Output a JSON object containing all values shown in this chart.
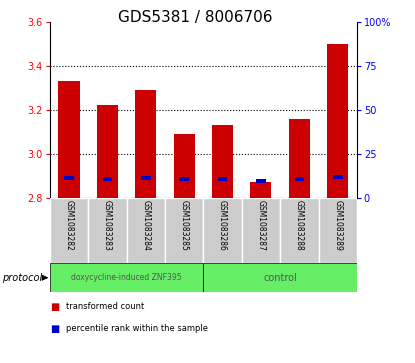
{
  "title": "GDS5381 / 8006706",
  "categories": [
    "GSM1083282",
    "GSM1083283",
    "GSM1083284",
    "GSM1083285",
    "GSM1083286",
    "GSM1083287",
    "GSM1083288",
    "GSM1083289"
  ],
  "transformed_count": [
    3.33,
    3.22,
    3.29,
    3.09,
    3.13,
    2.87,
    3.16,
    3.5
  ],
  "percentile_rank": [
    11.5,
    10.5,
    11.0,
    10.5,
    10.5,
    9.5,
    10.5,
    12.0
  ],
  "bar_bottom": 2.8,
  "ylim": [
    2.8,
    3.6
  ],
  "right_ylim": [
    0,
    100
  ],
  "right_yticks": [
    0,
    25,
    50,
    75,
    100
  ],
  "right_yticklabels": [
    "0",
    "25",
    "50",
    "75",
    "100%"
  ],
  "left_yticks": [
    2.8,
    3.0,
    3.2,
    3.4,
    3.6
  ],
  "bar_color": "#cc0000",
  "percentile_color": "#0000cc",
  "green_color": "#66ee66",
  "group1_label": "doxycycline-induced ZNF395",
  "group2_label": "control",
  "protocol_label": "protocol",
  "legend_red_label": "transformed count",
  "legend_blue_label": "percentile rank within the sample",
  "bar_width": 0.55,
  "percentile_bar_width": 0.25,
  "title_fontsize": 11,
  "tick_fontsize": 7,
  "label_fontsize": 6,
  "bg_color": "#cccccc",
  "white": "#ffffff"
}
